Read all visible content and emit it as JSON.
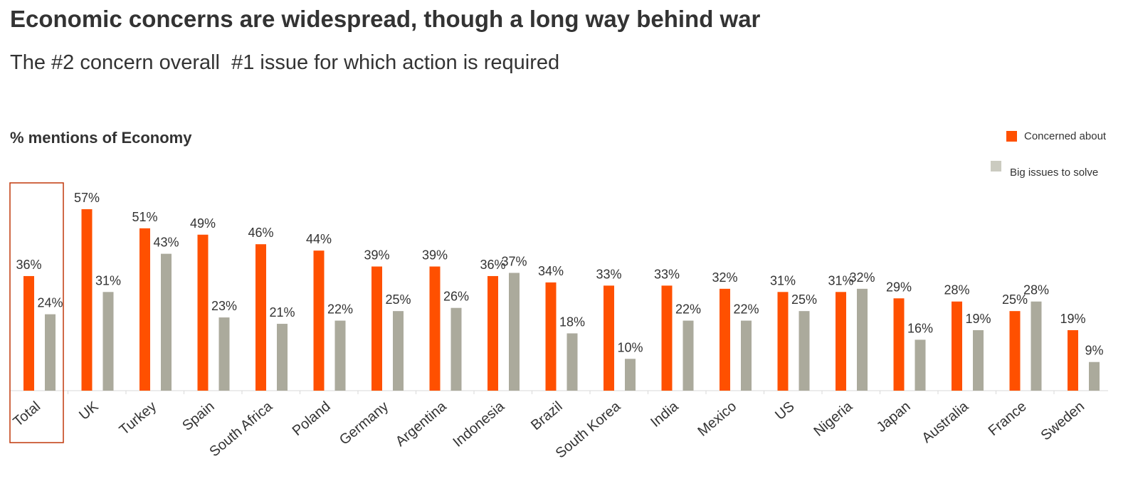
{
  "header": {
    "title": "Economic concerns are widespread, though a long way behind war",
    "subtitle": "The #2 concern overall  #1 issue for which action is required"
  },
  "colors": {
    "concerned": "#ff5000",
    "issues": "#abaa9c",
    "highlight_box": "#c0390b",
    "axis": "#d9d9d9",
    "legend_issues_swatch": "#cbcbc0"
  },
  "chart_data": {
    "type": "bar",
    "title": "% mentions of Economy",
    "xlabel": "",
    "ylabel": "% mentions of Economy",
    "ylim": [
      0,
      60
    ],
    "value_format": "{v}%",
    "highlighted_category": "Total",
    "legend_position": "top-right",
    "categories": [
      "Total",
      "UK",
      "Turkey",
      "Spain",
      "South Africa",
      "Poland",
      "Germany",
      "Argentina",
      "Indonesia",
      "Brazil",
      "South Korea",
      "India",
      "Mexico",
      "US",
      "Nigeria",
      "Japan",
      "Australia",
      "France",
      "Sweden"
    ],
    "series": [
      {
        "name": "Concerned about",
        "values": [
          36,
          57,
          51,
          49,
          46,
          44,
          39,
          39,
          36,
          34,
          33,
          33,
          32,
          31,
          31,
          29,
          28,
          25,
          19
        ]
      },
      {
        "name": "Big issues to solve",
        "values": [
          24,
          31,
          43,
          23,
          21,
          22,
          25,
          26,
          37,
          18,
          10,
          22,
          22,
          25,
          32,
          16,
          19,
          28,
          9
        ]
      }
    ]
  }
}
